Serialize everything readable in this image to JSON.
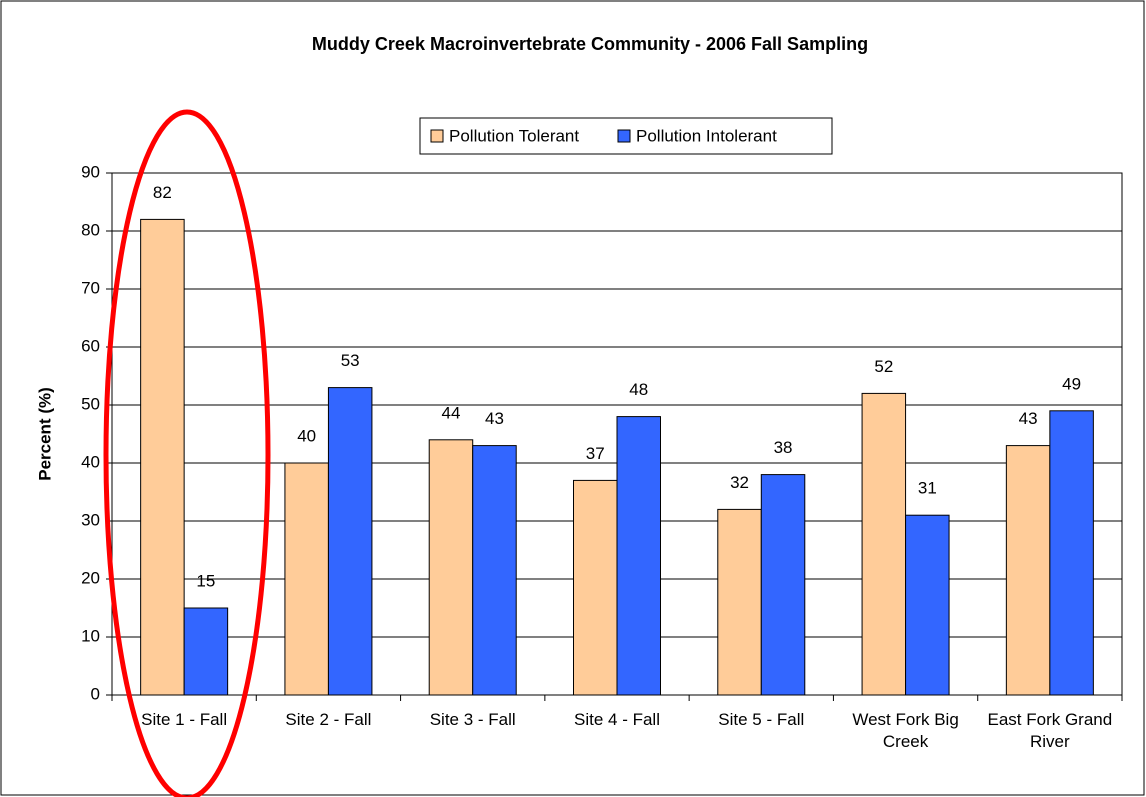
{
  "chart_data": {
    "type": "bar",
    "title": "Muddy Creek Macroinvertebrate Community - 2006 Fall Sampling",
    "y_label": "Percent (%)",
    "categories": [
      "Site 1 - Fall",
      "Site 2 - Fall",
      "Site 3 - Fall",
      "Site 4 - Fall",
      "Site 5 - Fall",
      "West Fork Big Creek",
      "East Fork Grand River"
    ],
    "series": [
      {
        "name": "Pollution Tolerant",
        "color": "#ffcc99",
        "values": [
          82,
          40,
          44,
          37,
          32,
          52,
          43
        ]
      },
      {
        "name": "Pollution Intolerant",
        "color": "#3366ff",
        "values": [
          15,
          53,
          43,
          48,
          38,
          31,
          49
        ]
      }
    ],
    "ylim": [
      0,
      90
    ],
    "yticks": [
      0,
      10,
      20,
      30,
      40,
      50,
      60,
      70,
      80,
      90
    ],
    "grid": true,
    "legend": "top"
  }
}
